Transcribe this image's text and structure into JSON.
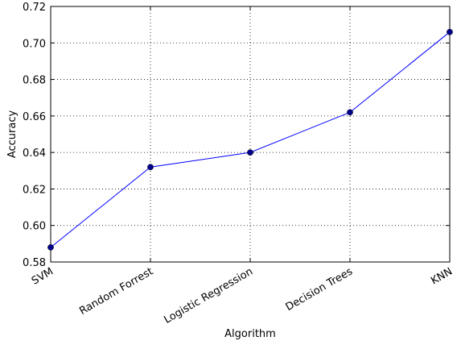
{
  "chart_data": {
    "type": "line",
    "categories": [
      "SVM",
      "Random Forrest",
      "Logistic Regression",
      "Decision Trees",
      "KNN"
    ],
    "series": [
      {
        "values": [
          0.588,
          0.632,
          0.64,
          0.662,
          0.706
        ]
      }
    ],
    "xlabel": "Algorithm",
    "ylabel": "Accuracy",
    "ylim": [
      0.58,
      0.72
    ],
    "yticks": [
      "0.58",
      "0.60",
      "0.62",
      "0.64",
      "0.66",
      "0.68",
      "0.70",
      "0.72"
    ],
    "grid": true,
    "line_color": "#0000ff",
    "marker_color": "#00008b"
  }
}
